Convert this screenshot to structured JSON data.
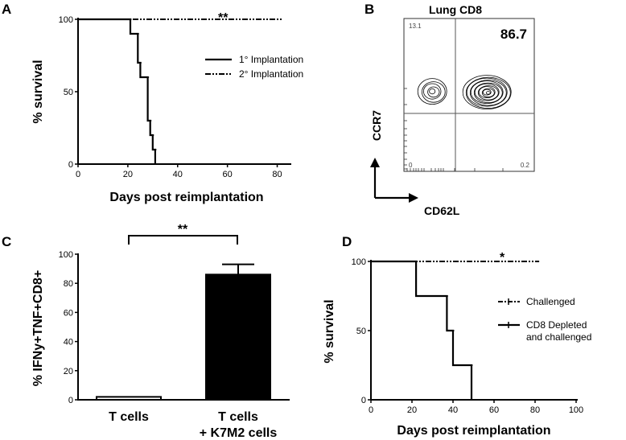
{
  "chart_data": [
    {
      "panel": "A",
      "type": "line",
      "xlabel": "Days post reimplantation",
      "ylabel": "% survival",
      "xlim": [
        0,
        85
      ],
      "ylim": [
        0,
        100
      ],
      "x_ticks": [
        "0",
        "20",
        "40",
        "60",
        "80"
      ],
      "y_ticks": [
        "0",
        "50",
        "100"
      ],
      "legend_placement": "right",
      "annotation": "**",
      "series": [
        {
          "name": "1° Implantation",
          "style": "solid",
          "points": [
            [
              0,
              100
            ],
            [
              21,
              100
            ],
            [
              21,
              90
            ],
            [
              24,
              90
            ],
            [
              24,
              70
            ],
            [
              25,
              70
            ],
            [
              25,
              60
            ],
            [
              28,
              60
            ],
            [
              28,
              30
            ],
            [
              29,
              30
            ],
            [
              29,
              20
            ],
            [
              30,
              20
            ],
            [
              30,
              10
            ],
            [
              31,
              10
            ],
            [
              31,
              0
            ]
          ]
        },
        {
          "name": "2° Implantation",
          "style": "dash-dot",
          "points": [
            [
              0,
              100
            ],
            [
              82,
              100
            ]
          ]
        }
      ]
    },
    {
      "panel": "B",
      "type": "contour",
      "title": "Lung CD8",
      "xlabel": "CD62L",
      "ylabel": "CCR7",
      "quadrant_values": {
        "top_left": "13.1",
        "top_right": "86.7",
        "bottom_left": "0",
        "bottom_right": "0.2"
      }
    },
    {
      "panel": "C",
      "type": "bar",
      "ylabel": "% IFNy+TNF+CD8+",
      "categories": [
        "T cells",
        "T cells\n+ K7M2 cells"
      ],
      "category_lines": [
        [
          "T cells"
        ],
        [
          "T cells",
          "+ K7M2 cells"
        ]
      ],
      "values": [
        2,
        86
      ],
      "error": [
        0,
        7
      ],
      "ylim": [
        0,
        100
      ],
      "y_ticks": [
        "0",
        "20",
        "40",
        "60",
        "80",
        "100"
      ],
      "annotation": "**",
      "bar_colors": [
        "#ffffff",
        "#000000"
      ]
    },
    {
      "panel": "D",
      "type": "line",
      "xlabel": "Days post reimplantation",
      "ylabel": "% survival",
      "xlim": [
        0,
        100
      ],
      "ylim": [
        0,
        100
      ],
      "x_ticks": [
        "0",
        "20",
        "40",
        "60",
        "80",
        "100"
      ],
      "y_ticks": [
        "0",
        "50",
        "100"
      ],
      "legend_placement": "right",
      "annotation": "*",
      "series": [
        {
          "name": "Challenged",
          "style": "dash-dot",
          "points": [
            [
              0,
              100
            ],
            [
              82,
              100
            ]
          ]
        },
        {
          "name": "CD8 Depleted\nand challenged",
          "style": "solid",
          "points": [
            [
              0,
              100
            ],
            [
              22,
              100
            ],
            [
              22,
              75
            ],
            [
              37,
              75
            ],
            [
              37,
              50
            ],
            [
              40,
              50
            ],
            [
              40,
              25
            ],
            [
              49,
              25
            ],
            [
              49,
              0
            ]
          ]
        }
      ]
    }
  ],
  "legend_lines": {
    "a1": "1° Implantation",
    "a2": "2° Implantation",
    "d1": "Challenged",
    "d2a": "CD8 Depleted",
    "d2b": "and challenged"
  }
}
